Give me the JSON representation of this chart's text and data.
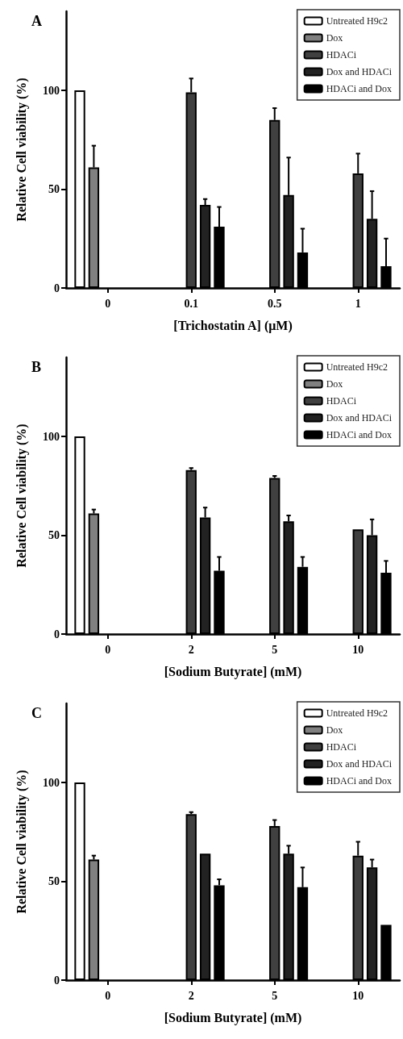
{
  "chart_data": [
    {
      "type": "bar",
      "title": "A",
      "xlabel": "[Trichostatin A] (μM)",
      "ylabel": "Relative Cell viability (%)",
      "categories": [
        "0",
        "0.1",
        "0.5",
        "1"
      ],
      "ylim": [
        0,
        140
      ],
      "yticks": [
        0,
        50,
        100
      ],
      "grid": false,
      "legend": "top right",
      "series": [
        {
          "name": "Untreated H9c2",
          "color": "#ffffff",
          "values": [
            100,
            null,
            null,
            null
          ],
          "errors": [
            null,
            null,
            null,
            null
          ]
        },
        {
          "name": "Dox",
          "color": "#808080",
          "values": [
            61,
            null,
            null,
            null
          ],
          "errors": [
            [
              61,
              72
            ],
            null,
            null,
            null
          ]
        },
        {
          "name": "HDACi",
          "color": "#404040",
          "values": [
            null,
            99,
            85,
            58
          ],
          "errors": [
            null,
            [
              99,
              106
            ],
            [
              85,
              91
            ],
            [
              58,
              68
            ]
          ]
        },
        {
          "name": "Dox and HDACi",
          "color": "#222222",
          "values": [
            null,
            42,
            47,
            35
          ],
          "errors": [
            null,
            [
              42,
              45
            ],
            [
              47,
              66
            ],
            [
              35,
              49
            ]
          ]
        },
        {
          "name": "HDACi and Dox",
          "color": "#000000",
          "values": [
            null,
            31,
            18,
            11
          ],
          "errors": [
            null,
            [
              31,
              41
            ],
            [
              18,
              30
            ],
            [
              11,
              25
            ]
          ]
        }
      ]
    },
    {
      "type": "bar",
      "title": "B",
      "xlabel": "[Sodium Butyrate] (mM)",
      "ylabel": "Relative Cell viability (%)",
      "categories": [
        "0",
        "2",
        "5",
        "10"
      ],
      "ylim": [
        0,
        140
      ],
      "yticks": [
        0,
        50,
        100
      ],
      "grid": false,
      "legend": "top right",
      "series": [
        {
          "name": "Untreated H9c2",
          "color": "#ffffff",
          "values": [
            100,
            null,
            null,
            null
          ],
          "errors": [
            null,
            null,
            null,
            null
          ]
        },
        {
          "name": "Dox",
          "color": "#808080",
          "values": [
            61,
            null,
            null,
            null
          ],
          "errors": [
            [
              61,
              63
            ],
            null,
            null,
            null
          ]
        },
        {
          "name": "HDACi",
          "color": "#404040",
          "values": [
            null,
            83,
            79,
            53
          ],
          "errors": [
            null,
            [
              83,
              84
            ],
            [
              79,
              80
            ],
            null
          ]
        },
        {
          "name": "Dox and HDACi",
          "color": "#222222",
          "values": [
            null,
            59,
            57,
            50
          ],
          "errors": [
            null,
            [
              59,
              64
            ],
            [
              57,
              60
            ],
            [
              50,
              58
            ]
          ]
        },
        {
          "name": "HDACi and Dox",
          "color": "#000000",
          "values": [
            null,
            32,
            34,
            31
          ],
          "errors": [
            null,
            [
              32,
              39
            ],
            [
              34,
              39
            ],
            [
              31,
              37
            ]
          ]
        }
      ]
    },
    {
      "type": "bar",
      "title": "C",
      "xlabel": "[Sodium Butyrate] (mM)",
      "ylabel": "Relative Cell viability (%)",
      "categories": [
        "0",
        "2",
        "5",
        "10"
      ],
      "ylim": [
        0,
        140
      ],
      "yticks": [
        0,
        50,
        100
      ],
      "grid": false,
      "legend": "top right",
      "series": [
        {
          "name": "Untreated H9c2",
          "color": "#ffffff",
          "values": [
            100,
            null,
            null,
            null
          ],
          "errors": [
            null,
            null,
            null,
            null
          ]
        },
        {
          "name": "Dox",
          "color": "#808080",
          "values": [
            61,
            null,
            null,
            null
          ],
          "errors": [
            [
              61,
              63
            ],
            null,
            null,
            null
          ]
        },
        {
          "name": "HDACi",
          "color": "#404040",
          "values": [
            null,
            84,
            78,
            63
          ],
          "errors": [
            null,
            [
              84,
              85
            ],
            [
              78,
              81
            ],
            [
              63,
              70
            ]
          ]
        },
        {
          "name": "Dox and HDACi",
          "color": "#222222",
          "values": [
            null,
            64,
            64,
            57
          ],
          "errors": [
            null,
            null,
            [
              64,
              68
            ],
            [
              57,
              61
            ]
          ]
        },
        {
          "name": "HDACi and Dox",
          "color": "#000000",
          "values": [
            null,
            48,
            47,
            28
          ],
          "errors": [
            null,
            [
              48,
              51
            ],
            [
              47,
              57
            ],
            null
          ]
        }
      ]
    }
  ]
}
